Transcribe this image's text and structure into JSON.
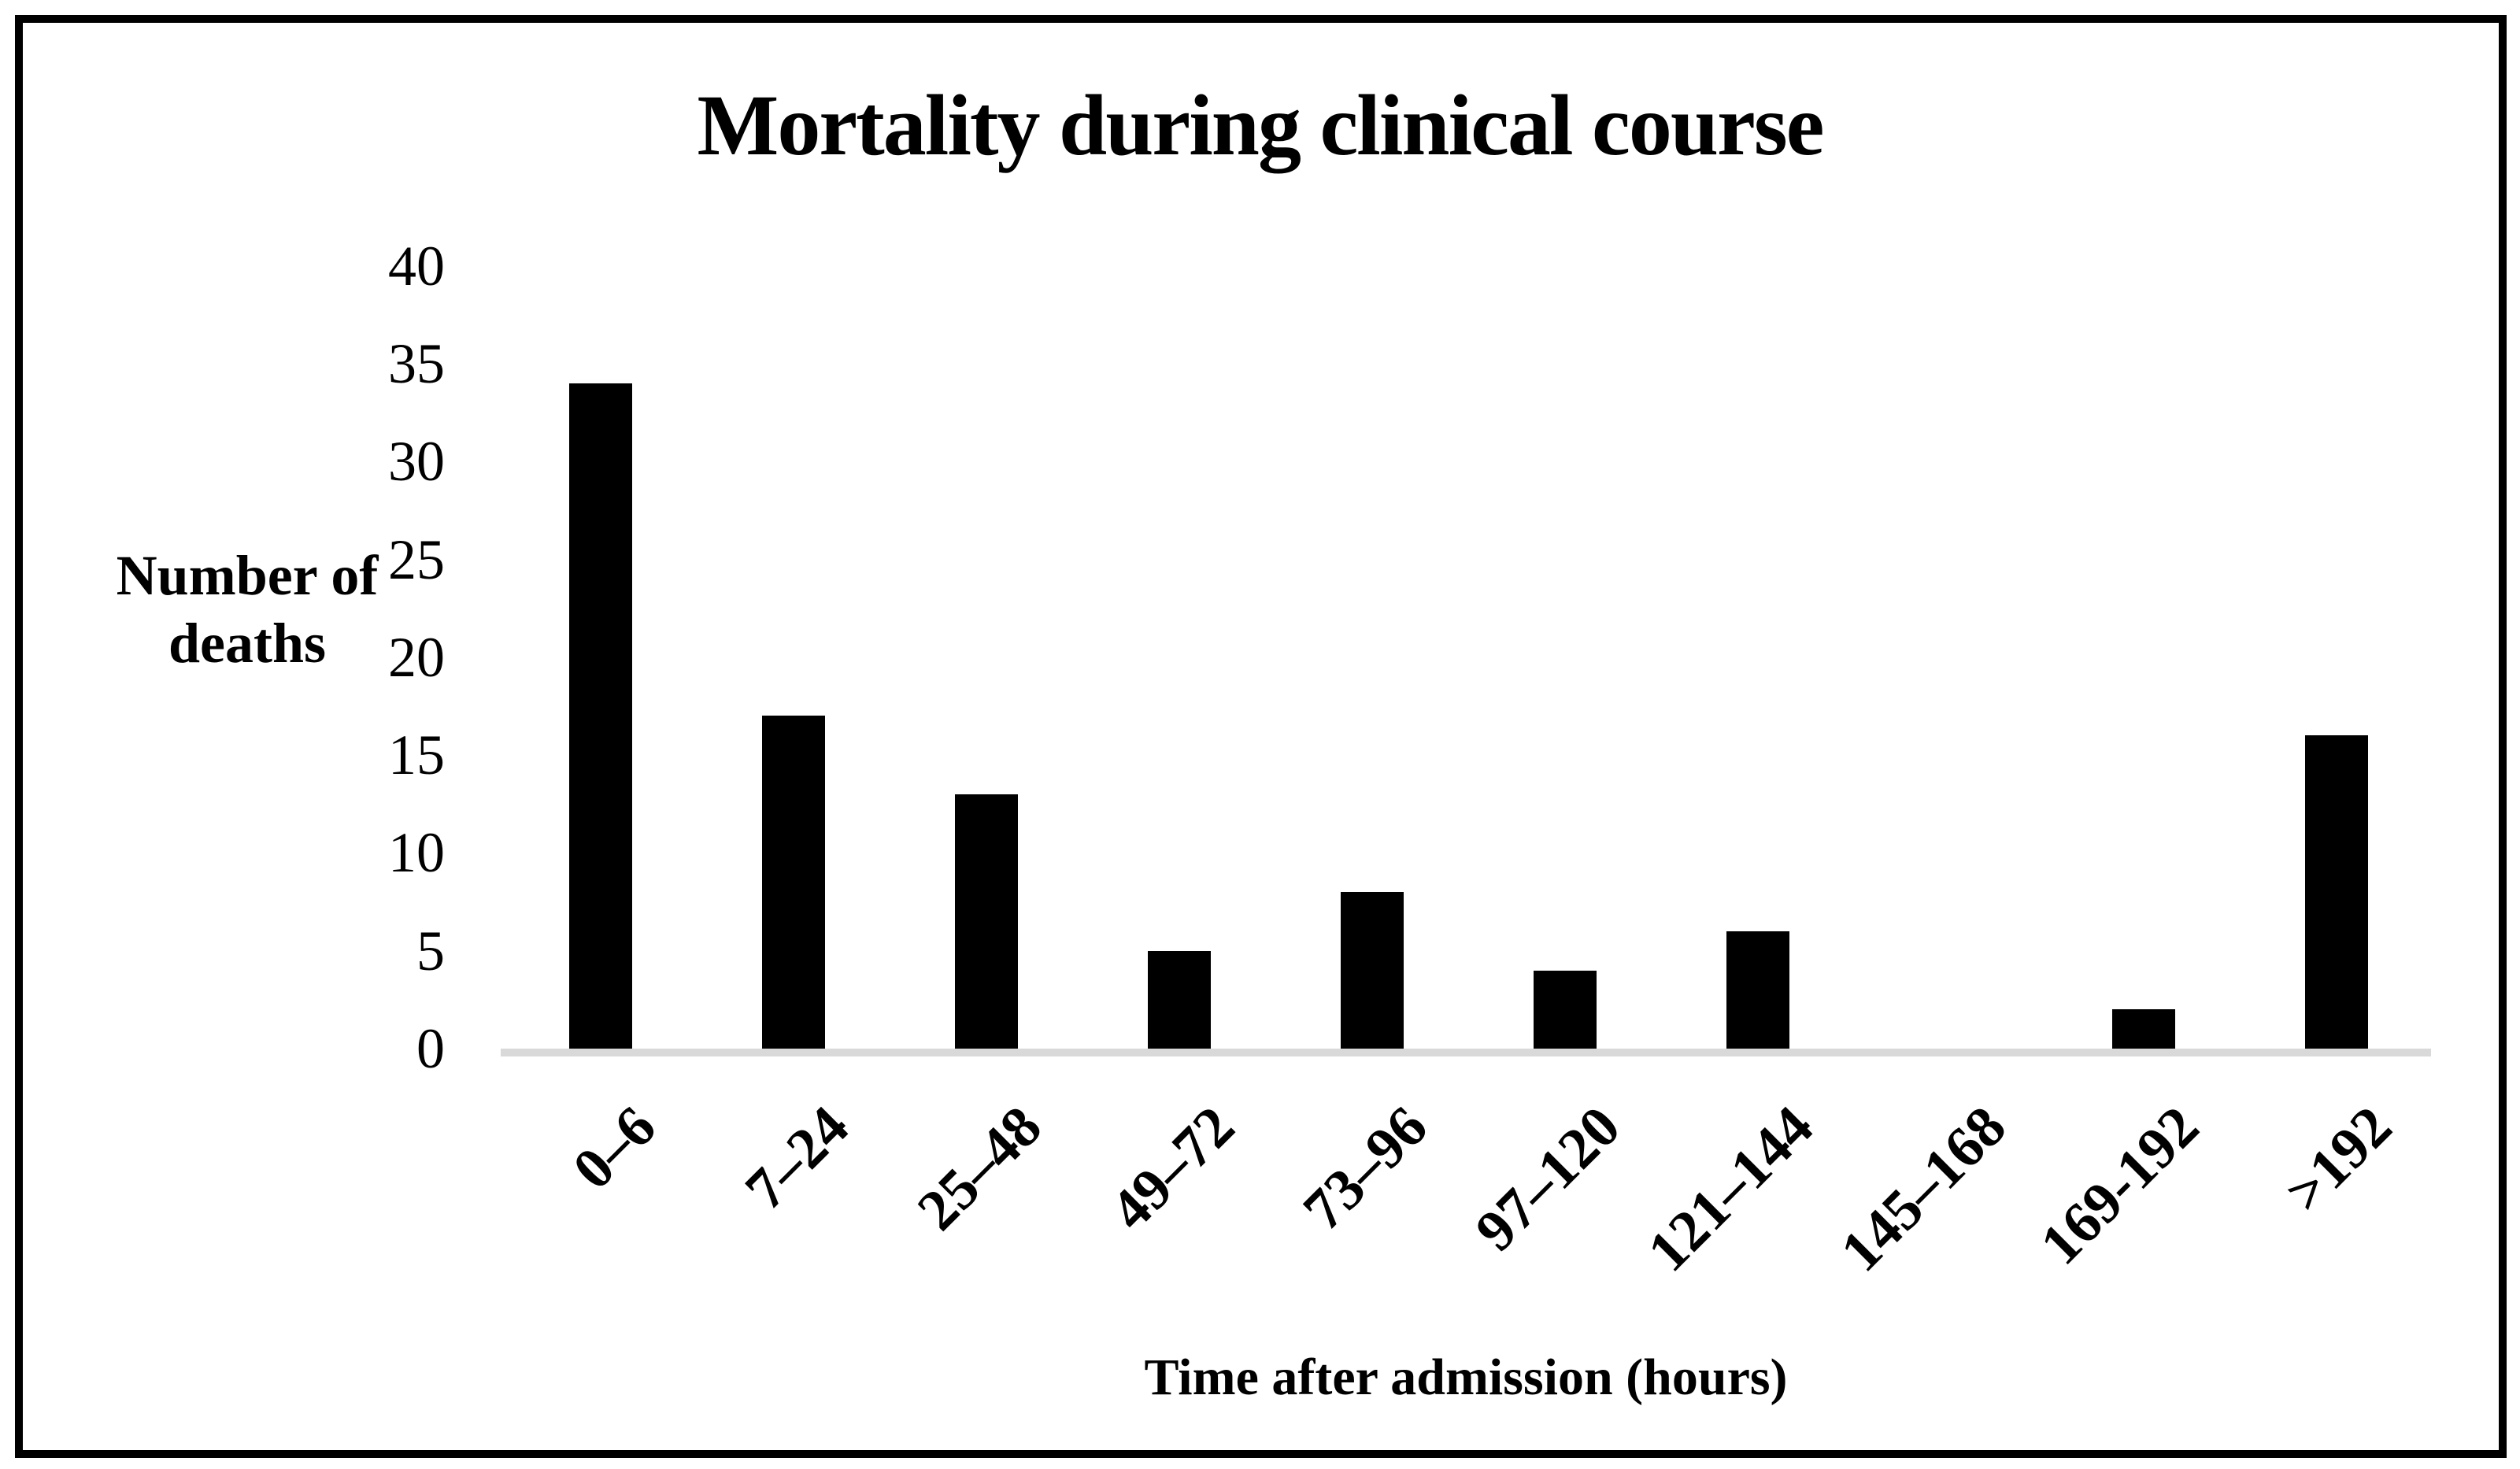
{
  "chart_data": {
    "type": "bar",
    "title": "Mortality during clinical course",
    "categories": [
      "0–6",
      "7–24",
      "25–48",
      "49–72",
      "73–96",
      "97–120",
      "121–144",
      "145–168",
      "169-192",
      ">192"
    ],
    "values": [
      34,
      17,
      13,
      5,
      8,
      4,
      6,
      0,
      2,
      16
    ],
    "xlabel": "Time after admission (hours)",
    "ylabel": "Number of deaths",
    "ylim": [
      0,
      40
    ],
    "yticks": [
      0,
      5,
      10,
      15,
      20,
      25,
      30,
      35,
      40
    ],
    "grid": false,
    "legend_position": "none",
    "bar_color": "#000000",
    "axis_line_color": "#d9d9d9",
    "text_color": "#000000",
    "background_color": "#ffffff",
    "frame_color": "#000000"
  }
}
